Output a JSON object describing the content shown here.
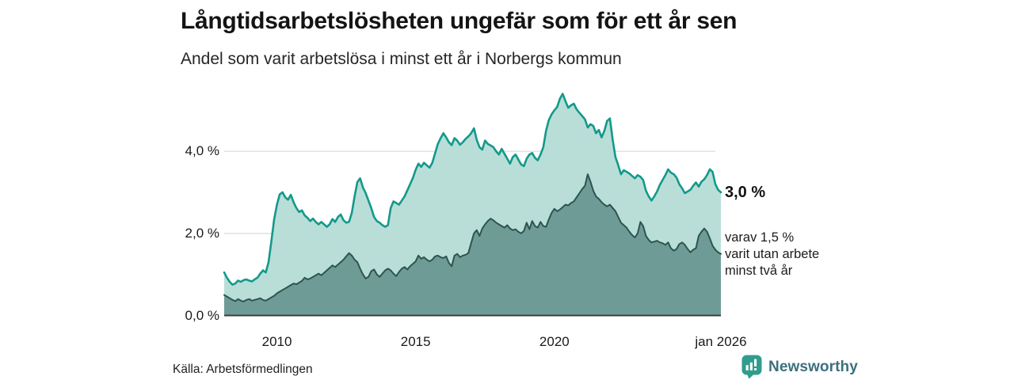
{
  "header": {
    "title": "Långtidsarbetslösheten ungefär som för ett år sen",
    "subtitle": "Andel som varit arbetslösa i minst ett år i Norbergs kommun"
  },
  "annotations": {
    "total_value_label": "3,0 %",
    "subset_label_lines": [
      "varav 1,5 %",
      "varit utan arbete",
      "minst två år"
    ]
  },
  "footer": {
    "source": "Källa: Arbetsförmedlingen",
    "logo_text": "Newsworthy"
  },
  "colors": {
    "total_area_fill": "#b9ded8",
    "total_line": "#13998a",
    "subset_area_fill": "#6f9b97",
    "subset_line": "#2d544f",
    "gridline": "#dedede",
    "axis_line": "#3d3d3d",
    "logo_icon": "#2f9c8d",
    "logo_text": "#3d6f7e"
  },
  "chart_data": {
    "type": "area",
    "title": "Långtidsarbetslösheten ungefär som för ett år sen",
    "subtitle": "Andel som varit arbetslösa i minst ett år i Norbergs kommun",
    "x_unit": "decimal_year",
    "x_start": 2008.1,
    "x_step": 0.1,
    "x_end": 2026.0,
    "ylim": [
      0,
      5.6
    ],
    "grid": "horizontal",
    "legend": "none",
    "x_ticks": [
      {
        "label": "2010",
        "year": 2010.0
      },
      {
        "label": "2015",
        "year": 2015.0
      },
      {
        "label": "2020",
        "year": 2020.0
      },
      {
        "label": "jan 2026",
        "year": 2026.0
      }
    ],
    "y_ticks": [
      {
        "label": "0,0 %",
        "value": 0.0
      },
      {
        "label": "2,0 %",
        "value": 2.0
      },
      {
        "label": "4,0 %",
        "value": 4.0
      }
    ],
    "series": [
      {
        "name": "Andel arbetslösa i minst ett år",
        "end_value": 3.0,
        "end_label": "3,0 %",
        "values": [
          1.05,
          0.92,
          0.82,
          0.75,
          0.78,
          0.85,
          0.82,
          0.86,
          0.88,
          0.85,
          0.83,
          0.88,
          0.92,
          1.02,
          1.1,
          1.05,
          1.3,
          1.8,
          2.35,
          2.7,
          2.95,
          3.0,
          2.88,
          2.82,
          2.94,
          2.76,
          2.62,
          2.52,
          2.56,
          2.44,
          2.38,
          2.3,
          2.36,
          2.28,
          2.22,
          2.28,
          2.22,
          2.16,
          2.22,
          2.35,
          2.28,
          2.4,
          2.46,
          2.32,
          2.26,
          2.28,
          2.5,
          2.9,
          3.25,
          3.34,
          3.12,
          2.98,
          2.8,
          2.62,
          2.4,
          2.3,
          2.26,
          2.2,
          2.16,
          2.2,
          2.62,
          2.78,
          2.74,
          2.7,
          2.8,
          2.9,
          3.05,
          3.2,
          3.35,
          3.55,
          3.7,
          3.62,
          3.72,
          3.66,
          3.6,
          3.72,
          3.95,
          4.18,
          4.32,
          4.44,
          4.34,
          4.22,
          4.15,
          4.32,
          4.26,
          4.16,
          4.22,
          4.3,
          4.36,
          4.44,
          4.56,
          4.28,
          4.1,
          4.04,
          4.26,
          4.18,
          4.14,
          4.1,
          4.0,
          3.92,
          4.06,
          3.94,
          3.82,
          3.7,
          3.86,
          3.92,
          3.8,
          3.68,
          3.64,
          3.82,
          3.92,
          3.96,
          3.84,
          3.78,
          3.92,
          4.1,
          4.5,
          4.76,
          4.9,
          5.0,
          5.08,
          5.28,
          5.4,
          5.22,
          5.06,
          5.12,
          5.16,
          5.02,
          4.94,
          4.86,
          4.78,
          4.58,
          4.66,
          4.62,
          4.44,
          4.52,
          4.34,
          4.5,
          4.74,
          4.8,
          4.28,
          3.86,
          3.66,
          3.44,
          3.54,
          3.5,
          3.46,
          3.4,
          3.34,
          3.42,
          3.38,
          3.3,
          3.04,
          2.9,
          2.8,
          2.9,
          3.02,
          3.18,
          3.3,
          3.42,
          3.56,
          3.48,
          3.44,
          3.36,
          3.2,
          3.1,
          2.98,
          3.02,
          3.06,
          3.16,
          3.24,
          3.14,
          3.26,
          3.32,
          3.42,
          3.56,
          3.5,
          3.2,
          3.06,
          3.0
        ]
      },
      {
        "name": "varav utan arbete minst två år",
        "end_value": 1.5,
        "end_label": "varav 1,5 % varit utan arbete minst två år",
        "values": [
          0.5,
          0.46,
          0.42,
          0.38,
          0.35,
          0.4,
          0.36,
          0.34,
          0.38,
          0.4,
          0.36,
          0.38,
          0.4,
          0.42,
          0.38,
          0.36,
          0.4,
          0.44,
          0.48,
          0.54,
          0.58,
          0.62,
          0.66,
          0.7,
          0.74,
          0.78,
          0.76,
          0.8,
          0.84,
          0.92,
          0.88,
          0.9,
          0.94,
          0.98,
          1.02,
          0.98,
          1.04,
          1.1,
          1.16,
          1.22,
          1.18,
          1.24,
          1.3,
          1.36,
          1.44,
          1.52,
          1.46,
          1.36,
          1.3,
          1.14,
          1.0,
          0.9,
          0.94,
          1.08,
          1.12,
          1.0,
          0.94,
          1.02,
          1.1,
          1.14,
          1.1,
          1.02,
          0.96,
          1.06,
          1.14,
          1.18,
          1.12,
          1.2,
          1.26,
          1.32,
          1.46,
          1.38,
          1.42,
          1.36,
          1.32,
          1.36,
          1.44,
          1.46,
          1.42,
          1.4,
          1.44,
          1.28,
          1.2,
          1.46,
          1.5,
          1.42,
          1.46,
          1.48,
          1.52,
          1.76,
          2.0,
          2.08,
          1.94,
          2.12,
          2.22,
          2.3,
          2.36,
          2.32,
          2.26,
          2.22,
          2.18,
          2.14,
          2.2,
          2.12,
          2.08,
          2.1,
          2.04,
          2.0,
          2.06,
          2.26,
          2.1,
          2.3,
          2.18,
          2.14,
          2.28,
          2.18,
          2.16,
          2.34,
          2.5,
          2.6,
          2.54,
          2.58,
          2.64,
          2.7,
          2.68,
          2.74,
          2.78,
          2.88,
          2.98,
          3.08,
          3.16,
          3.44,
          3.26,
          3.04,
          2.9,
          2.84,
          2.76,
          2.7,
          2.66,
          2.7,
          2.62,
          2.54,
          2.4,
          2.26,
          2.2,
          2.14,
          2.04,
          1.96,
          1.9,
          2.0,
          2.28,
          2.18,
          1.94,
          1.84,
          1.78,
          1.8,
          1.82,
          1.78,
          1.76,
          1.72,
          1.78,
          1.64,
          1.58,
          1.62,
          1.74,
          1.78,
          1.72,
          1.62,
          1.54,
          1.6,
          1.64,
          1.94,
          2.04,
          2.12,
          2.04,
          1.88,
          1.7,
          1.6,
          1.54,
          1.5
        ]
      }
    ]
  }
}
